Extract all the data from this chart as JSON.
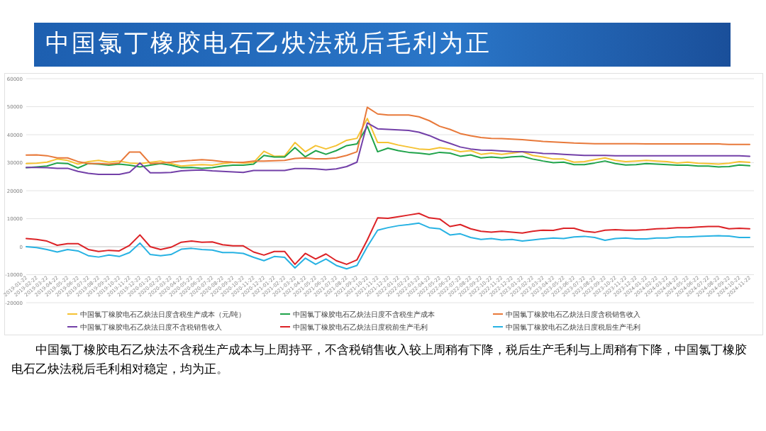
{
  "chart_data": {
    "type": "line",
    "title": "中国氯丁橡胶电石乙炔法税后毛利为正",
    "categories": [
      "2019-01-22",
      "2019-02-22",
      "2019-03-22",
      "2019-04-22",
      "2019-05-22",
      "2019-06-22",
      "2019-07-22",
      "2019-08-22",
      "2019-09-22",
      "2019-10-22",
      "2019-11-22",
      "2019-12-22",
      "2020-01-22",
      "2020-02-22",
      "2020-03-22",
      "2020-04-22",
      "2020-05-22",
      "2020-06-22",
      "2020-07-22",
      "2020-08-22",
      "2020-09-22",
      "2020-10-22",
      "2020-11-22",
      "2020-12-22",
      "2021-01-22",
      "2021-02-22",
      "2021-03-22",
      "2021-04-22",
      "2021-05-22",
      "2021-06-22",
      "2021-07-22",
      "2021-08-22",
      "2021-09-22",
      "2021-10-22",
      "2021-11-22",
      "2021-12-22",
      "2022-01-22",
      "2022-02-22",
      "2022-03-22",
      "2022-04-22",
      "2022-05-22",
      "2022-06-22",
      "2022-07-22",
      "2022-08-22",
      "2022-09-22",
      "2022-10-22",
      "2022-11-22",
      "2022-12-22",
      "2023-01-22",
      "2023-02-22",
      "2023-03-22",
      "2023-04-22",
      "2023-05-22",
      "2023-06-22",
      "2023-07-22",
      "2023-08-22",
      "2023-09-22",
      "2023-10-22",
      "2023-11-22",
      "2023-12-22",
      "2024-01-22",
      "2024-02-22",
      "2024-03-22",
      "2024-04-22",
      "2024-05-22",
      "2024-06-22",
      "2024-07-22",
      "2024-08-22",
      "2024-09-22",
      "2024-10-22",
      "2024-11-22"
    ],
    "series": [
      {
        "name": "中国氯丁橡胶电石乙炔法日度含税生产成本（元/吨）",
        "color": "#f5c232",
        "values": [
          29700,
          29800,
          30200,
          31300,
          30800,
          29500,
          30400,
          30800,
          30200,
          30600,
          29900,
          29700,
          30100,
          30600,
          29700,
          28800,
          29100,
          29300,
          29100,
          29700,
          30100,
          29900,
          30100,
          34100,
          32300,
          32400,
          37200,
          33900,
          36100,
          34900,
          36100,
          38000,
          38700,
          45800,
          37200,
          37200,
          36300,
          35600,
          34900,
          34700,
          35400,
          34900,
          33900,
          34300,
          33000,
          33400,
          33000,
          33400,
          33900,
          32600,
          32000,
          31300,
          31300,
          30200,
          30400,
          31100,
          31700,
          30800,
          30400,
          30600,
          30800,
          30600,
          30400,
          29900,
          30200,
          29800,
          29700,
          29500,
          29800,
          30400,
          30100
        ]
      },
      {
        "name": "中国氯丁橡胶电石乙炔法日度不含税生产成本",
        "color": "#1fa34a",
        "values": [
          28200,
          28500,
          28800,
          29900,
          29700,
          28100,
          29700,
          29500,
          29100,
          29500,
          29100,
          28500,
          29100,
          29700,
          29100,
          28200,
          28300,
          28000,
          28200,
          28800,
          29100,
          29100,
          29500,
          32600,
          32000,
          32000,
          35400,
          32100,
          34300,
          33000,
          34300,
          36100,
          36700,
          43000,
          33900,
          35200,
          34300,
          33700,
          33400,
          33000,
          33700,
          33400,
          32300,
          32800,
          31700,
          32000,
          31700,
          32100,
          32300,
          31300,
          30600,
          30000,
          30200,
          29300,
          29300,
          29900,
          30600,
          29700,
          29200,
          29300,
          29700,
          29500,
          29300,
          29100,
          29100,
          28800,
          28800,
          28500,
          28600,
          29200,
          28900
        ]
      },
      {
        "name": "中国氯丁橡胶电石乙炔法日度含税销售收入",
        "color": "#e8793a",
        "values": [
          32700,
          32800,
          32500,
          31700,
          31700,
          30400,
          29700,
          29700,
          29500,
          29900,
          33800,
          33800,
          29700,
          29900,
          30200,
          30600,
          30800,
          31100,
          30800,
          30400,
          30200,
          30100,
          30600,
          30600,
          30700,
          30800,
          31500,
          31700,
          31400,
          31400,
          31700,
          32600,
          33900,
          49800,
          47400,
          47000,
          47000,
          47000,
          46400,
          45000,
          43000,
          41900,
          40400,
          39600,
          39000,
          38700,
          38600,
          38400,
          38200,
          37900,
          37600,
          37400,
          37200,
          37000,
          36900,
          36800,
          36800,
          36800,
          36800,
          36800,
          36700,
          36700,
          36700,
          36700,
          36700,
          36700,
          36700,
          36700,
          36500,
          36500,
          36500
        ]
      },
      {
        "name": "中国氯丁橡胶电石乙炔法日度不含税销售收入",
        "color": "#7340a8",
        "values": [
          28300,
          28300,
          28200,
          28000,
          28000,
          26900,
          26200,
          25800,
          25800,
          25800,
          26600,
          29900,
          26400,
          26400,
          26500,
          27100,
          27300,
          27400,
          27100,
          26900,
          26700,
          26500,
          27200,
          27200,
          27200,
          27200,
          27900,
          27900,
          27800,
          27500,
          27800,
          28600,
          30200,
          44200,
          42100,
          41900,
          41700,
          41500,
          40900,
          39700,
          38100,
          36900,
          35600,
          34900,
          34500,
          34400,
          34200,
          34000,
          33900,
          33700,
          33300,
          33200,
          33000,
          32800,
          32600,
          32600,
          32600,
          32500,
          32500,
          32500,
          32500,
          32500,
          32500,
          32500,
          32500,
          32500,
          32500,
          32500,
          32500,
          32500,
          32300
        ]
      },
      {
        "name": "中国氯丁橡胶电石乙炔法日度税前生产毛利",
        "color": "#dc2226",
        "values": [
          2900,
          2600,
          2000,
          500,
          1100,
          1100,
          -1000,
          -1700,
          -1300,
          -1500,
          500,
          4200,
          0,
          -1000,
          -200,
          1600,
          2000,
          1600,
          1700,
          700,
          300,
          300,
          -1900,
          -3000,
          -1700,
          -1700,
          -6300,
          -2400,
          -4400,
          -2600,
          -5000,
          -6300,
          -4700,
          2400,
          10300,
          10100,
          10700,
          11300,
          11900,
          10300,
          9900,
          7200,
          7900,
          6400,
          5500,
          5200,
          5500,
          5200,
          4900,
          5500,
          5900,
          5800,
          6600,
          6600,
          5500,
          5100,
          5900,
          6100,
          5900,
          5900,
          6100,
          6400,
          6500,
          6800,
          6800,
          7000,
          7200,
          7200,
          6400,
          6600,
          6400
        ]
      },
      {
        "name": "中国氯丁橡胶电石乙炔法日度税后生产毛利",
        "color": "#27b2e3",
        "values": [
          0,
          -300,
          -1000,
          -1900,
          -1000,
          -1500,
          -3200,
          -3700,
          -3000,
          -3500,
          -2100,
          1300,
          -2800,
          -3200,
          -2800,
          -900,
          -600,
          -1000,
          -1200,
          -2100,
          -2100,
          -2400,
          -3800,
          -5000,
          -3500,
          -3800,
          -7600,
          -4100,
          -6300,
          -4400,
          -6700,
          -7900,
          -6700,
          0,
          5900,
          6800,
          7500,
          7900,
          8400,
          6800,
          6400,
          4200,
          4600,
          3300,
          2600,
          2900,
          2400,
          2600,
          2000,
          2400,
          2800,
          3100,
          2900,
          3500,
          3700,
          3300,
          2300,
          2900,
          3100,
          2800,
          2800,
          3100,
          3100,
          3500,
          3500,
          3700,
          3800,
          3900,
          3800,
          3300,
          3300
        ]
      }
    ],
    "ylim": [
      -20000,
      60000
    ],
    "yticks": [
      -20000,
      -10000,
      0,
      10000,
      20000,
      30000,
      40000,
      50000,
      60000
    ],
    "grid": "y",
    "legend": "bottom",
    "annotations": [
      "中国氯丁橡胶电石乙炔法不含税生产成本与上周持平，不含税销售收入较上周稍有下降，税后生产毛利与上周稍有下降，中国氯丁橡胶电石乙炔法税后毛利相对稳定，均为正。"
    ]
  }
}
